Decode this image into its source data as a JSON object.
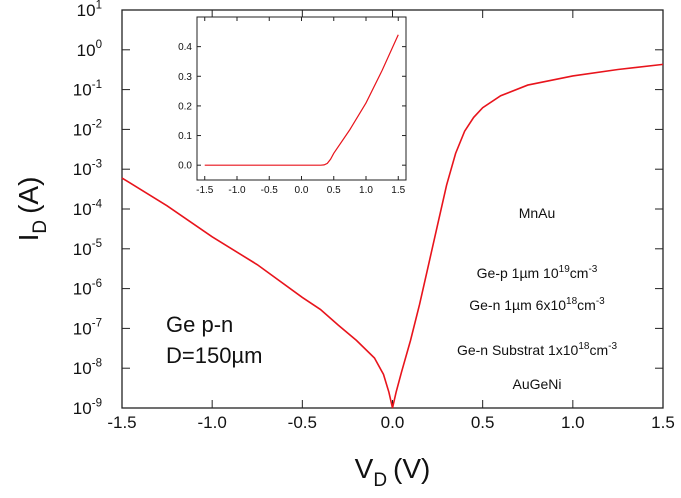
{
  "chart_data": [
    {
      "type": "line",
      "yscale": "log",
      "x_label": {
        "text": "V",
        "sub": "D",
        "unit": "(V)"
      },
      "y_label": {
        "text": "I",
        "sub": "D",
        "unit": "(A)"
      },
      "xlim": [
        -1.5,
        1.5
      ],
      "ylim": [
        1e-09,
        10
      ],
      "xticks": [
        -1.5,
        {
          "value": -1,
          "label": "-1.0"
        },
        -0.5,
        {
          "value": 0,
          "label": "0.0"
        },
        0.5,
        {
          "value": 1,
          "label": "1.0"
        },
        1.5
      ],
      "yticks": [
        {
          "value": 1e-09,
          "label": "10",
          "sup": "-9"
        },
        {
          "value": 1e-08,
          "label": "10",
          "sup": "-8"
        },
        {
          "value": 1e-07,
          "label": "10",
          "sup": "-7"
        },
        {
          "value": 1e-06,
          "label": "10",
          "sup": "-6"
        },
        {
          "value": 1e-05,
          "label": "10",
          "sup": "-5"
        },
        {
          "value": 0.0001,
          "label": "10",
          "sup": "-4"
        },
        {
          "value": 0.001,
          "label": "10",
          "sup": "-3"
        },
        {
          "value": 0.01,
          "label": "10",
          "sup": "-2"
        },
        {
          "value": 0.1,
          "label": "10",
          "sup": "-1"
        },
        {
          "value": 1,
          "label": "10",
          "sup": "0"
        },
        {
          "value": 10,
          "label": "10",
          "sup": "1"
        }
      ],
      "x": [
        -1.5,
        -1.25,
        -1.0,
        -0.75,
        -0.5,
        -0.4,
        -0.3,
        -0.2,
        -0.1,
        -0.05,
        -0.02,
        0,
        0.02,
        0.05,
        0.1,
        0.15,
        0.2,
        0.25,
        0.3,
        0.35,
        0.4,
        0.45,
        0.5,
        0.6,
        0.75,
        1.0,
        1.25,
        1.5
      ],
      "series": [
        {
          "color": "#e8141c",
          "values": [
            0.0006,
            0.00012,
            2e-05,
            4e-06,
            6e-07,
            3e-07,
            1.2e-07,
            5e-08,
            1.8e-08,
            7e-09,
            2.5e-09,
            1e-09,
            2.5e-09,
            8e-09,
            5e-08,
            4e-07,
            4e-06,
            4e-05,
            0.0004,
            0.0025,
            0.009,
            0.02,
            0.035,
            0.07,
            0.13,
            0.22,
            0.32,
            0.43
          ]
        }
      ],
      "annotations": [
        "Ge p-n",
        "D=150µm"
      ]
    },
    {
      "type": "line",
      "yscale": "linear",
      "xlim": [
        -1.62,
        1.62
      ],
      "ylim": [
        -0.05,
        0.5
      ],
      "xticks": [
        -1.5,
        {
          "value": -1,
          "label": "-1.0"
        },
        -0.5,
        {
          "value": 0,
          "label": "0.0"
        },
        0.5,
        {
          "value": 1,
          "label": "1.0"
        },
        1.5
      ],
      "yticks": [
        {
          "value": 0,
          "label": "0.0"
        },
        0.1,
        0.2,
        0.3,
        0.4
      ],
      "x": [
        -1.5,
        0,
        0.3,
        0.35,
        0.4,
        0.45,
        0.5,
        0.75,
        1.0,
        1.25,
        1.5
      ],
      "series": [
        {
          "color": "#e8141c",
          "values": [
            0,
            0,
            0,
            0.001,
            0.006,
            0.02,
            0.04,
            0.12,
            0.21,
            0.32,
            0.44
          ]
        }
      ]
    }
  ],
  "diagram": {
    "layers": [
      {
        "parts": [
          "MnAu"
        ]
      },
      {
        "parts": [
          "Ge-p 1µm 10",
          "19",
          "cm",
          "-3"
        ]
      },
      {
        "parts": [
          "Ge-n 1µm 6x10",
          "18",
          "cm",
          "-3"
        ]
      },
      {
        "parts": [
          "Ge-n Substrat 1x10",
          "18",
          "cm",
          "-3"
        ]
      },
      {
        "parts": [
          "AuGeNi"
        ]
      }
    ]
  }
}
